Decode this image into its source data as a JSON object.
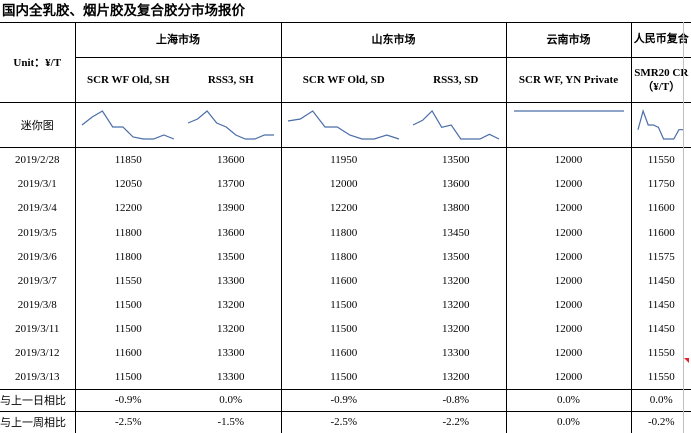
{
  "title": "国内全乳胶、烟片胶及复合胶分市场报价",
  "unit_label": "Unit：¥/T",
  "markets": [
    {
      "name": "上海市场"
    },
    {
      "name": "山东市场"
    },
    {
      "name": "云南市场"
    },
    {
      "name": "人民币复合"
    }
  ],
  "columns": [
    "SCR WF Old, SH",
    "RSS3, SH",
    "SCR WF Old, SD",
    "RSS3, SD",
    "SCR WF, YN Private",
    "SMR20 CR（¥/T）"
  ],
  "sparkline_label": "迷你图",
  "rows": [
    {
      "date": "2019/2/28",
      "values": [
        "11850",
        "13600",
        "11950",
        "13500",
        "12000",
        "11550"
      ]
    },
    {
      "date": "2019/3/1",
      "values": [
        "12050",
        "13700",
        "12000",
        "13600",
        "12000",
        "11750"
      ]
    },
    {
      "date": "2019/3/4",
      "values": [
        "12200",
        "13900",
        "12200",
        "13800",
        "12000",
        "11600"
      ]
    },
    {
      "date": "2019/3/5",
      "values": [
        "11800",
        "13600",
        "11800",
        "13450",
        "12000",
        "11600"
      ]
    },
    {
      "date": "2019/3/6",
      "values": [
        "11800",
        "13500",
        "11800",
        "13500",
        "12000",
        "11575"
      ]
    },
    {
      "date": "2019/3/7",
      "values": [
        "11550",
        "13300",
        "11600",
        "13200",
        "12000",
        "11450"
      ]
    },
    {
      "date": "2019/3/8",
      "values": [
        "11500",
        "13200",
        "11500",
        "13200",
        "12000",
        "11450"
      ]
    },
    {
      "date": "2019/3/11",
      "values": [
        "11500",
        "13200",
        "11500",
        "13200",
        "12000",
        "11450"
      ]
    },
    {
      "date": "2019/3/12",
      "values": [
        "11600",
        "13300",
        "11600",
        "13300",
        "12000",
        "11550"
      ]
    },
    {
      "date": "2019/3/13",
      "values": [
        "11500",
        "13300",
        "11500",
        "13200",
        "12000",
        "11550"
      ]
    }
  ],
  "changes": [
    {
      "label": "与上一日相比",
      "values": [
        "-0.9%",
        "0.0%",
        "-0.9%",
        "-0.8%",
        "0.0%",
        "0.0%"
      ]
    },
    {
      "label": "与上一周相比",
      "values": [
        "-2.5%",
        "-1.5%",
        "-2.5%",
        "-2.2%",
        "0.0%",
        "-0.2%"
      ]
    }
  ],
  "colors": {
    "sparkline": "#4a6da8",
    "marker": "#e0202a"
  }
}
